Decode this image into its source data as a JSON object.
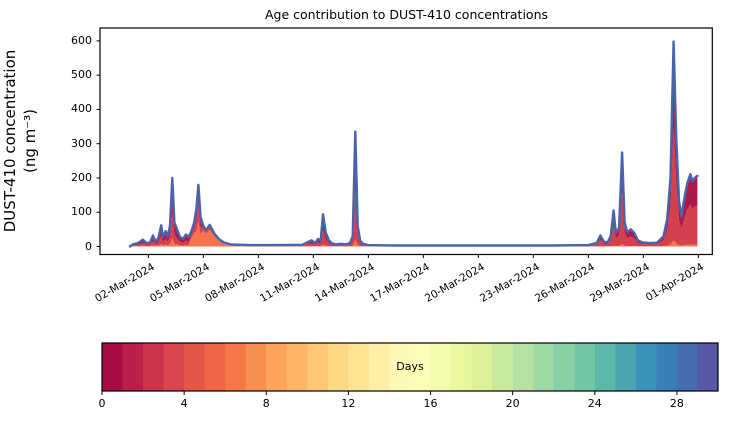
{
  "figure": {
    "title": "Age contribution to DUST-410 concentrations",
    "background_color": "#ffffff"
  },
  "chart_data": {
    "type": "area",
    "title": "Age contribution to DUST-410 concentrations",
    "ylabel_line1": "DUST-410 concentration",
    "ylabel_line2": "(ng m⁻³)",
    "xlabel": "",
    "grid": false,
    "ylim": [
      -31,
      632
    ],
    "y_ticks": [
      0,
      100,
      200,
      300,
      400,
      500,
      600
    ],
    "x_axis_unit": "days since 01-Mar-2024",
    "xlim_days": [
      -1.65,
      31.8
    ],
    "x_ticks": [
      {
        "day": 1,
        "label": "02-Mar-2024"
      },
      {
        "day": 4,
        "label": "05-Mar-2024"
      },
      {
        "day": 7,
        "label": "08-Mar-2024"
      },
      {
        "day": 10,
        "label": "11-Mar-2024"
      },
      {
        "day": 13,
        "label": "14-Mar-2024"
      },
      {
        "day": 16,
        "label": "17-Mar-2024"
      },
      {
        "day": 19,
        "label": "20-Mar-2024"
      },
      {
        "day": 22,
        "label": "23-Mar-2024"
      },
      {
        "day": 25,
        "label": "26-Mar-2024"
      },
      {
        "day": 28,
        "label": "29-Mar-2024"
      },
      {
        "day": 31,
        "label": "01-Apr-2024"
      }
    ],
    "total_concentration_points": [
      [
        0.0,
        0
      ],
      [
        0.15,
        6
      ],
      [
        0.45,
        10
      ],
      [
        0.7,
        20
      ],
      [
        0.9,
        10
      ],
      [
        1.1,
        12
      ],
      [
        1.25,
        32
      ],
      [
        1.4,
        14
      ],
      [
        1.55,
        25
      ],
      [
        1.7,
        62
      ],
      [
        1.8,
        28
      ],
      [
        1.95,
        45
      ],
      [
        2.05,
        28
      ],
      [
        2.18,
        60
      ],
      [
        2.31,
        200
      ],
      [
        2.42,
        70
      ],
      [
        2.58,
        48
      ],
      [
        2.72,
        28
      ],
      [
        2.9,
        22
      ],
      [
        3.05,
        35
      ],
      [
        3.2,
        28
      ],
      [
        3.35,
        45
      ],
      [
        3.5,
        70
      ],
      [
        3.62,
        110
      ],
      [
        3.73,
        180
      ],
      [
        3.85,
        85
      ],
      [
        4.0,
        60
      ],
      [
        4.15,
        48
      ],
      [
        4.35,
        63
      ],
      [
        4.6,
        38
      ],
      [
        4.85,
        22
      ],
      [
        5.1,
        12
      ],
      [
        5.5,
        6
      ],
      [
        6.5,
        4
      ],
      [
        8.0,
        4
      ],
      [
        9.4,
        5
      ],
      [
        9.9,
        18
      ],
      [
        10.1,
        10
      ],
      [
        10.25,
        22
      ],
      [
        10.4,
        18
      ],
      [
        10.53,
        94
      ],
      [
        10.68,
        40
      ],
      [
        10.85,
        18
      ],
      [
        11.0,
        10
      ],
      [
        11.2,
        6
      ],
      [
        11.5,
        8
      ],
      [
        11.75,
        6
      ],
      [
        12.0,
        10
      ],
      [
        12.15,
        30
      ],
      [
        12.29,
        335
      ],
      [
        12.42,
        60
      ],
      [
        12.55,
        18
      ],
      [
        12.7,
        8
      ],
      [
        13.0,
        4
      ],
      [
        14.5,
        3
      ],
      [
        17.0,
        3
      ],
      [
        20.0,
        3
      ],
      [
        23.0,
        3
      ],
      [
        25.0,
        4
      ],
      [
        25.45,
        10
      ],
      [
        25.66,
        32
      ],
      [
        25.85,
        14
      ],
      [
        26.05,
        12
      ],
      [
        26.22,
        30
      ],
      [
        26.38,
        105
      ],
      [
        26.5,
        40
      ],
      [
        26.68,
        55
      ],
      [
        26.84,
        274
      ],
      [
        26.98,
        70
      ],
      [
        27.12,
        42
      ],
      [
        27.32,
        50
      ],
      [
        27.5,
        40
      ],
      [
        27.7,
        18
      ],
      [
        27.95,
        12
      ],
      [
        28.35,
        10
      ],
      [
        28.75,
        11
      ],
      [
        29.1,
        30
      ],
      [
        29.3,
        80
      ],
      [
        29.48,
        200
      ],
      [
        29.65,
        598
      ],
      [
        29.8,
        310
      ],
      [
        29.95,
        130
      ],
      [
        30.08,
        88
      ],
      [
        30.22,
        135
      ],
      [
        30.4,
        185
      ],
      [
        30.57,
        211
      ],
      [
        30.68,
        190
      ],
      [
        30.8,
        200
      ],
      [
        30.95,
        206
      ]
    ],
    "age_layer_colors": {
      "age_0_2_days": "#ac1a4a",
      "age_2_5_days": "#d5404e",
      "age_5_9_days": "#f4744c"
    },
    "age_layer_order_bottom_to_top": [
      "age_5_9_days",
      "age_2_5_days",
      "age_0_2_days"
    ],
    "age_fraction_regions": [
      {
        "from": 0.0,
        "to": 3.27,
        "age_5_9_days": 0.12,
        "age_2_5_days": 0.36,
        "age_0_2_days": 0.52
      },
      {
        "from": 3.27,
        "to": 3.6,
        "age_5_9_days": 0.55,
        "age_2_5_days": 0.2,
        "age_0_2_days": 0.25
      },
      {
        "from": 3.6,
        "to": 3.88,
        "age_5_9_days": 0.4,
        "age_2_5_days": 0.28,
        "age_0_2_days": 0.32
      },
      {
        "from": 3.88,
        "to": 5.6,
        "age_5_9_days": 0.78,
        "age_2_5_days": 0.12,
        "age_0_2_days": 0.1
      },
      {
        "from": 5.6,
        "to": 9.6,
        "age_5_9_days": 0.34,
        "age_2_5_days": 0.33,
        "age_0_2_days": 0.33
      },
      {
        "from": 9.6,
        "to": 13.5,
        "age_5_9_days": 0.06,
        "age_2_5_days": 0.44,
        "age_0_2_days": 0.5
      },
      {
        "from": 13.5,
        "to": 25.3,
        "age_5_9_days": 0.08,
        "age_2_5_days": 0.46,
        "age_0_2_days": 0.46
      },
      {
        "from": 25.3,
        "to": 31.0,
        "age_5_9_days": 0.03,
        "age_2_5_days": 0.55,
        "age_0_2_days": 0.42
      }
    ],
    "outline_color": "#4a63ab",
    "outline_width": 2.4,
    "axis_color": "#000000",
    "colorbar": {
      "label": "Days",
      "min": 0,
      "max": 30,
      "n_cells": 30,
      "ticks": [
        0,
        4,
        8,
        12,
        16,
        20,
        24,
        28
      ],
      "colormap_name": "Spectral",
      "spectral_anchor_colors": [
        "#9e0142",
        "#d53e4f",
        "#f46d43",
        "#fdae61",
        "#fee08b",
        "#ffffbf",
        "#e6f598",
        "#abdda4",
        "#66c2a5",
        "#3288bd",
        "#5e4fa2"
      ],
      "border_color": "#000000"
    }
  }
}
